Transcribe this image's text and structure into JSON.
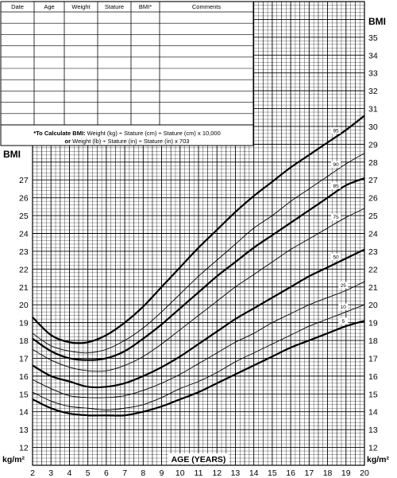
{
  "record_table": {
    "columns": [
      "Date",
      "Age",
      "Weight",
      "Stature",
      "BMI*",
      "Comments"
    ],
    "rows": 10
  },
  "formula_note": {
    "line1_bold": "*To Calculate BMI:",
    "line1_rest": " Weight (kg) ÷ Stature (cm) ÷ Stature (cm) x 10,000",
    "line2_bold": "or",
    "line2_rest": " Weight (lb) ÷ Stature (in) ÷ Stature (in) x 703"
  },
  "chart_data": {
    "type": "line",
    "xlabel": "AGE (YEARS)",
    "ylabel": "BMI",
    "yunit": "kg/m²",
    "xlim": [
      2,
      20
    ],
    "ylim": [
      11,
      37
    ],
    "x_ticks": [
      2,
      3,
      4,
      5,
      6,
      7,
      8,
      9,
      10,
      11,
      12,
      13,
      14,
      15,
      16,
      17,
      18,
      19,
      20
    ],
    "y_ticks_left": [
      12,
      13,
      14,
      15,
      16,
      17,
      18,
      19,
      20,
      21,
      22,
      23,
      24,
      25,
      26,
      27
    ],
    "y_ticks_right": [
      12,
      13,
      14,
      15,
      16,
      17,
      18,
      19,
      20,
      21,
      22,
      23,
      24,
      25,
      26,
      27,
      28,
      29,
      30,
      31,
      32,
      33,
      34,
      35
    ],
    "grid": true,
    "x": [
      2,
      3,
      4,
      5,
      6,
      7,
      8,
      9,
      10,
      11,
      12,
      13,
      14,
      15,
      16,
      17,
      18,
      19,
      20
    ],
    "series": [
      {
        "name": "5",
        "bold": true,
        "values": [
          14.7,
          14.2,
          13.9,
          13.8,
          13.8,
          13.8,
          14.0,
          14.3,
          14.7,
          15.1,
          15.6,
          16.1,
          16.6,
          17.1,
          17.6,
          18.0,
          18.4,
          18.8,
          19.1
        ]
      },
      {
        "name": "10",
        "bold": false,
        "values": [
          15.1,
          14.6,
          14.3,
          14.2,
          14.1,
          14.2,
          14.4,
          14.8,
          15.3,
          15.7,
          16.2,
          16.8,
          17.3,
          17.8,
          18.3,
          18.8,
          19.2,
          19.6,
          20.0
        ]
      },
      {
        "name": "25",
        "bold": false,
        "values": [
          15.8,
          15.3,
          14.9,
          14.8,
          14.8,
          14.9,
          15.2,
          15.6,
          16.1,
          16.7,
          17.3,
          17.9,
          18.4,
          19.0,
          19.5,
          20.0,
          20.4,
          20.8,
          21.3
        ]
      },
      {
        "name": "50",
        "bold": true,
        "values": [
          16.6,
          16.0,
          15.7,
          15.4,
          15.4,
          15.6,
          16.0,
          16.5,
          17.1,
          17.8,
          18.5,
          19.2,
          19.8,
          20.4,
          21.0,
          21.6,
          22.1,
          22.6,
          23.1
        ]
      },
      {
        "name": "75",
        "bold": false,
        "values": [
          17.5,
          16.9,
          16.5,
          16.3,
          16.3,
          16.6,
          17.1,
          17.8,
          18.6,
          19.4,
          20.2,
          21.0,
          21.7,
          22.4,
          23.1,
          23.7,
          24.3,
          24.9,
          25.4
        ]
      },
      {
        "name": "85",
        "bold": true,
        "values": [
          18.1,
          17.4,
          17.0,
          16.9,
          17.0,
          17.4,
          18.1,
          18.9,
          19.8,
          20.7,
          21.6,
          22.4,
          23.2,
          23.9,
          24.6,
          25.3,
          26.0,
          26.7,
          27.1
        ]
      },
      {
        "name": "90",
        "bold": false,
        "values": [
          18.4,
          17.7,
          17.4,
          17.3,
          17.5,
          18.0,
          18.7,
          19.6,
          20.6,
          21.6,
          22.5,
          23.4,
          24.3,
          25.0,
          25.8,
          26.5,
          27.2,
          27.9,
          28.5
        ]
      },
      {
        "name": "95",
        "bold": true,
        "values": [
          19.3,
          18.3,
          17.9,
          17.9,
          18.3,
          19.0,
          19.9,
          21.0,
          22.1,
          23.2,
          24.2,
          25.2,
          26.1,
          26.9,
          27.7,
          28.4,
          29.1,
          29.8,
          30.6
        ]
      }
    ]
  }
}
